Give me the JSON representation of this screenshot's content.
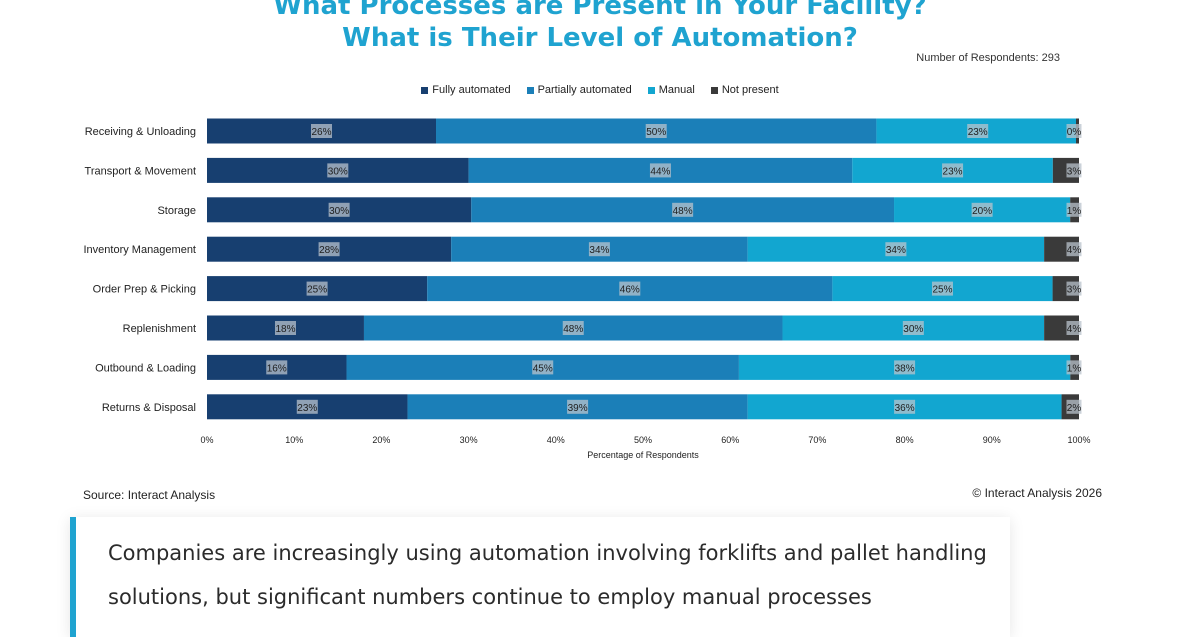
{
  "header": {
    "title_line1": "What Processes are Present in Your Facility?",
    "title_line2": "What is Their Level of Automation?",
    "respondents": "Number of Respondents: 293"
  },
  "legend": [
    {
      "label": "Fully automated",
      "color": "#173f70"
    },
    {
      "label": "Partially automated",
      "color": "#1b7fb8"
    },
    {
      "label": "Manual",
      "color": "#12a6d0"
    },
    {
      "label": "Not present",
      "color": "#3a3a3a"
    }
  ],
  "chart_data": {
    "type": "bar",
    "orientation": "horizontal",
    "stacked": true,
    "categories": [
      "Receiving & Unloading",
      "Transport & Movement",
      "Storage",
      "Inventory Management",
      "Order Prep & Picking",
      "Replenishment",
      "Outbound & Loading",
      "Returns & Disposal"
    ],
    "series": [
      {
        "name": "Fully automated",
        "color": "#173f70",
        "values": [
          26,
          30,
          30,
          28,
          25,
          18,
          16,
          23
        ],
        "labels": [
          "26%",
          "30%",
          "30%",
          "28%",
          "25%",
          "18%",
          "16%",
          "23%"
        ]
      },
      {
        "name": "Partially automated",
        "color": "#1b7fb8",
        "values": [
          50,
          44,
          48,
          34,
          46,
          48,
          45,
          39
        ],
        "labels": [
          "50%",
          "44%",
          "48%",
          "34%",
          "46%",
          "48%",
          "45%",
          "39%"
        ]
      },
      {
        "name": "Manual",
        "color": "#12a6d0",
        "values": [
          23,
          23,
          20,
          34,
          25,
          30,
          38,
          36
        ],
        "labels": [
          "23%",
          "23%",
          "20%",
          "34%",
          "25%",
          "30%",
          "38%",
          "36%"
        ]
      },
      {
        "name": "Not present",
        "color": "#3a3a3a",
        "values": [
          0,
          3,
          1,
          4,
          3,
          4,
          1,
          2
        ],
        "labels": [
          "0%",
          "3%",
          "1%",
          "4%",
          "3%",
          "4%",
          "1%",
          "2%"
        ]
      }
    ],
    "xlim": [
      0,
      100
    ],
    "xticks": [
      "0%",
      "10%",
      "20%",
      "30%",
      "40%",
      "50%",
      "60%",
      "70%",
      "80%",
      "90%",
      "100%"
    ],
    "xlabel": "Percentage of Respondents",
    "ylabel": "",
    "grid": false,
    "legend_position": "top"
  },
  "footer": {
    "source": "Source: Interact Analysis",
    "copyright": "© Interact Analysis 2026"
  },
  "callout": {
    "text": "Companies are increasingly using automation involving forklifts and pallet handling solutions, but significant numbers continue to employ manual processes"
  }
}
